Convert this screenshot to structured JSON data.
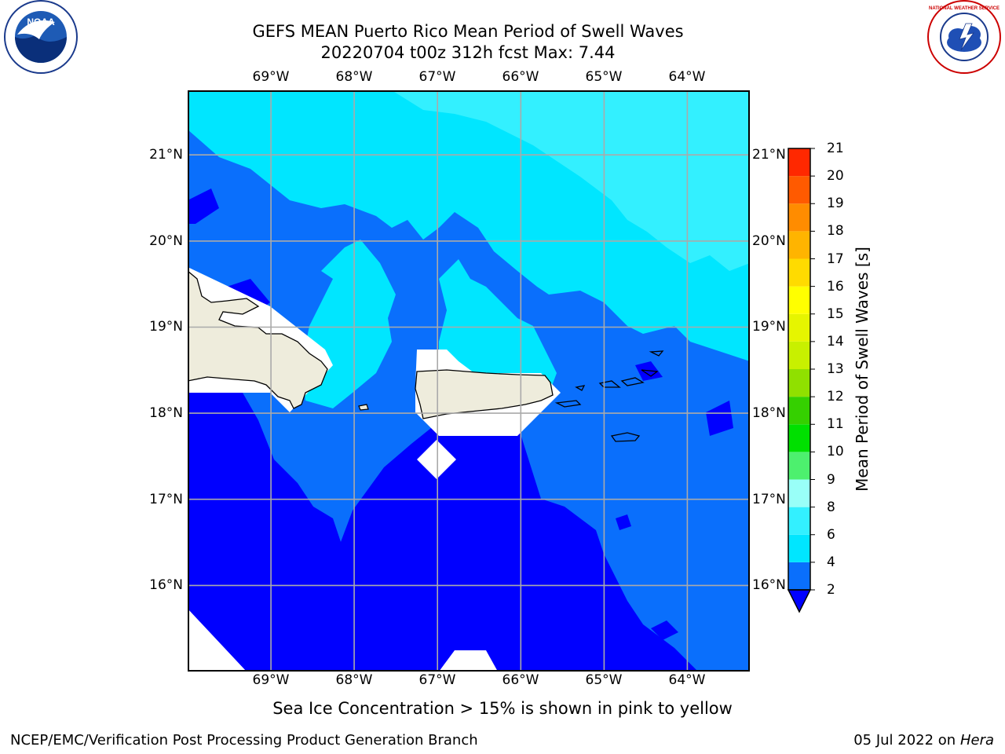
{
  "title": {
    "line1": "GEFS MEAN Puerto Rico Mean Period of Swell Waves",
    "line2": "20220704 t00z 312h fcst   Max: 7.44"
  },
  "map": {
    "extent": {
      "lon_min": -70.0,
      "lon_max": -63.25,
      "lat_min": 15.0,
      "lat_max": 21.75
    },
    "lon_labels": [
      "69°W",
      "68°W",
      "67°W",
      "66°W",
      "65°W",
      "64°W"
    ],
    "lat_labels": [
      "21°N",
      "20°N",
      "19°N",
      "18°N",
      "17°N",
      "16°N"
    ],
    "grid": true
  },
  "colorbar": {
    "label": "Mean Period of Swell Waves [s]",
    "ticks": [
      "2",
      "4",
      "6",
      "8",
      "9",
      "10",
      "11",
      "12",
      "13",
      "14",
      "15",
      "16",
      "17",
      "18",
      "19",
      "20",
      "21"
    ],
    "colors": [
      "#0a6ffc",
      "#00e6ff",
      "#33f0ff",
      "#99fff8",
      "#4df06e",
      "#00e000",
      "#35d000",
      "#90e000",
      "#c8f000",
      "#e6f500",
      "#ffff00",
      "#ffdb00",
      "#ffb400",
      "#ff8c00",
      "#ff5a00",
      "#ff2800"
    ],
    "under_color": "#0000ff"
  },
  "logos": {
    "left": "NOAA",
    "right": "NATIONAL WEATHER SERVICE"
  },
  "note": "Sea Ice Concentration > 15% is shown in pink to yellow",
  "footer": {
    "left": "NCEP/EMC/Verification Post Processing Product Generation Branch",
    "date": "05 Jul 2022 on",
    "machine": "Hera"
  }
}
